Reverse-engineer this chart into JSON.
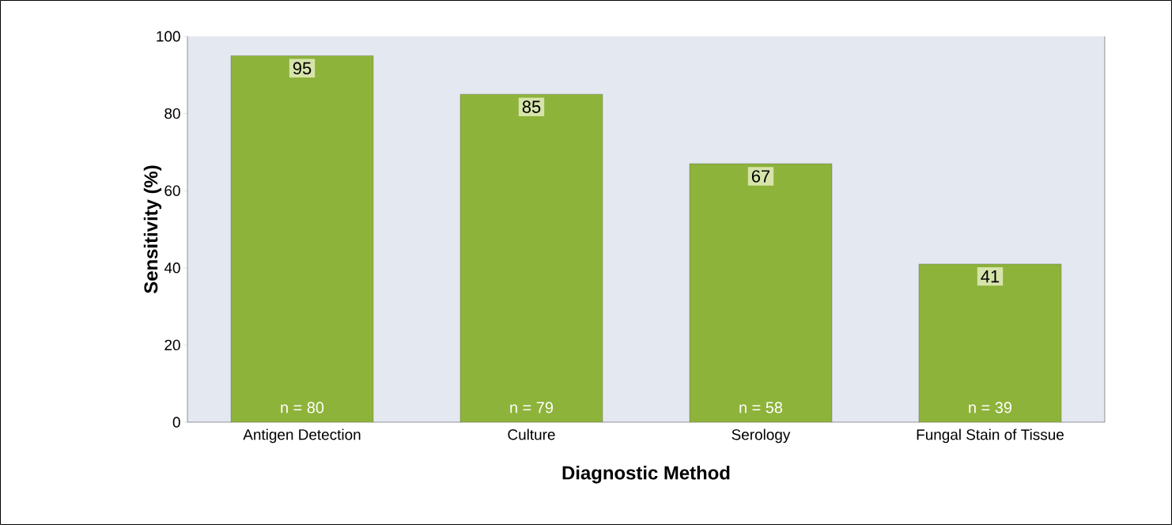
{
  "chart_data": {
    "type": "bar",
    "xlabel": "Diagnostic Method",
    "ylabel": "Sensitivity (%)",
    "categories": [
      "Antigen Detection",
      "Culture",
      "Serology",
      "Fungal Stain of Tissue"
    ],
    "values": [
      95,
      85,
      67,
      41
    ],
    "color": "#8db33a",
    "ylim": [
      0,
      100
    ],
    "yticks": [
      0,
      20,
      40,
      60,
      80,
      100
    ],
    "data_labels": true,
    "annotations": [
      "n = 80",
      "n = 79",
      "n = 58",
      "n = 39"
    ]
  }
}
